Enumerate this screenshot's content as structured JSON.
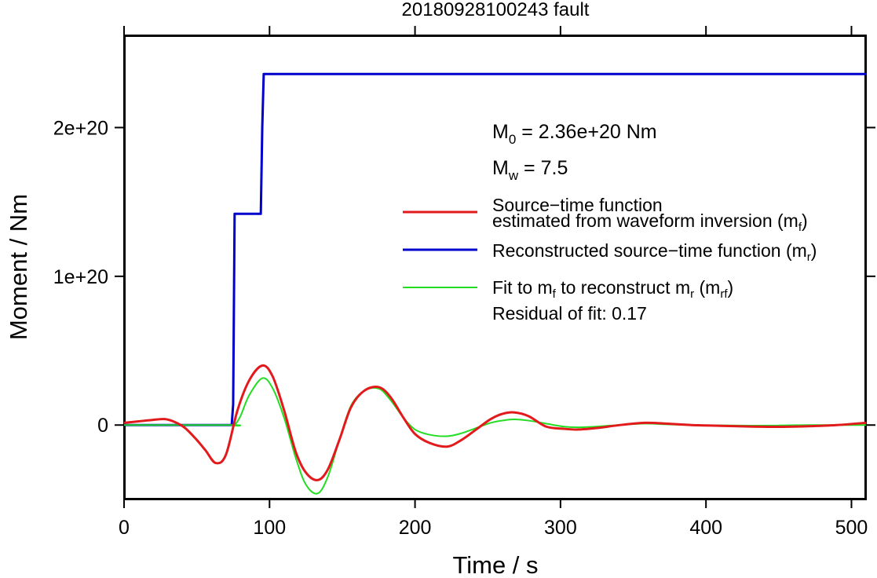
{
  "chart_data": {
    "type": "line",
    "title": "20180928100243 fault",
    "xlabel": "Time / s",
    "ylabel": "Moment / Nm",
    "xlim": [
      0,
      510
    ],
    "ylim": [
      -4.95e+19,
      2.62e+20
    ],
    "grid": false,
    "x_ticks": [
      0,
      100,
      200,
      300,
      400,
      500
    ],
    "x_tick_labels": [
      "0",
      "100",
      "200",
      "300",
      "400",
      "500"
    ],
    "y_ticks": [
      0,
      1e+20,
      2e+20
    ],
    "y_tick_labels": [
      "0",
      "1e+20",
      "2e+20"
    ],
    "annotations": {
      "m0": {
        "symbol": "M",
        "sub": "0",
        "rest": " = 2.36e+20 Nm"
      },
      "mw": {
        "symbol": "M",
        "sub": "w",
        "rest": " = 7.5"
      },
      "residual": "Residual of fit: 0.17"
    },
    "legend": {
      "placement": "right",
      "entries": [
        {
          "line1": "Source−time function",
          "line2_pre": "estimated from waveform inversion (m",
          "line2_sub": "f",
          "line2_post": ")",
          "color": "#e31a1c"
        },
        {
          "pre": "Reconstructed source−time function (m",
          "sub": "r",
          "post": ")",
          "color": "#0000cc"
        },
        {
          "pre1": "Fit to m",
          "sub1": "f",
          "mid": " to reconstruct m",
          "sub2": "r",
          "mid2": " (m",
          "sub3": "rf",
          "post": ")",
          "color": "#22dd22"
        }
      ]
    },
    "series": [
      {
        "color": "#0000cc",
        "x": [
          0,
          74,
          75,
          76,
          94,
          95,
          96,
          510
        ],
        "y": [
          0,
          0,
          1.4e+19,
          1.42e+20,
          1.42e+20,
          2e+20,
          2.36e+20,
          2.36e+20
        ]
      },
      {
        "color": "#e31a1c",
        "x": [
          0,
          10,
          20,
          28,
          35,
          42,
          50,
          56,
          63,
          70,
          78,
          86,
          95,
          102,
          110,
          118,
          125,
          133,
          140,
          148,
          156,
          165,
          175,
          183,
          192,
          200,
          210,
          222,
          232,
          242,
          252,
          260,
          268,
          278,
          290,
          302,
          312,
          325,
          340,
          358,
          372,
          390,
          410,
          430,
          450,
          470,
          490,
          510
        ],
        "y": [
          1.5e+18,
          2.5e+18,
          3.5e+18,
          4e+18,
          2e+18,
          -2e+18,
          -1e+19,
          -1.7e+19,
          -2.55e+19,
          -2e+19,
          1e+19,
          3e+19,
          4e+19,
          3.3e+19,
          1e+19,
          -1.8e+19,
          -3.2e+19,
          -3.7e+19,
          -3e+19,
          -1e+19,
          1.2e+19,
          2.3e+19,
          2.55e+19,
          1.9e+19,
          5e+18,
          -6e+18,
          -1.2e+19,
          -1.45e+19,
          -1e+19,
          -3e+18,
          4e+18,
          7.5e+18,
          8.5e+18,
          6e+18,
          -1e+18,
          -2.5e+18,
          -3e+18,
          -2e+18,
          -1e+17,
          1.5e+18,
          1e+18,
          0,
          -5e+17,
          -1e+18,
          -1.2e+18,
          -8e+17,
          0,
          1.5e+18
        ]
      },
      {
        "color": "#22dd22",
        "x": [
          0,
          74,
          76,
          80,
          86,
          95,
          102,
          110,
          118,
          125,
          133,
          140,
          148,
          156,
          165,
          175,
          183,
          192,
          200,
          210,
          222,
          232,
          242,
          252,
          260,
          268,
          278,
          290,
          302,
          312,
          325,
          340,
          358,
          372,
          390,
          410,
          430,
          450,
          470,
          490,
          510
        ],
        "y": [
          0,
          0,
          0,
          6e+18,
          2e+19,
          3.15e+19,
          2.5e+19,
          5e+18,
          -2.2e+19,
          -4e+19,
          -4.6e+19,
          -3.5e+19,
          -1e+19,
          1.3e+19,
          2.3e+19,
          2.45e+19,
          1.7e+19,
          5e+18,
          -3e+18,
          -6.5e+18,
          -7.5e+18,
          -5.5e+18,
          -2e+18,
          1.5e+18,
          3e+18,
          3.8e+18,
          3e+18,
          1e+18,
          -1e+18,
          -1.5e+18,
          -1e+18,
          0,
          1e+18,
          5e+17,
          0,
          -2e+17,
          -4e+17,
          -3e+17,
          0,
          0,
          0
        ]
      }
    ]
  }
}
